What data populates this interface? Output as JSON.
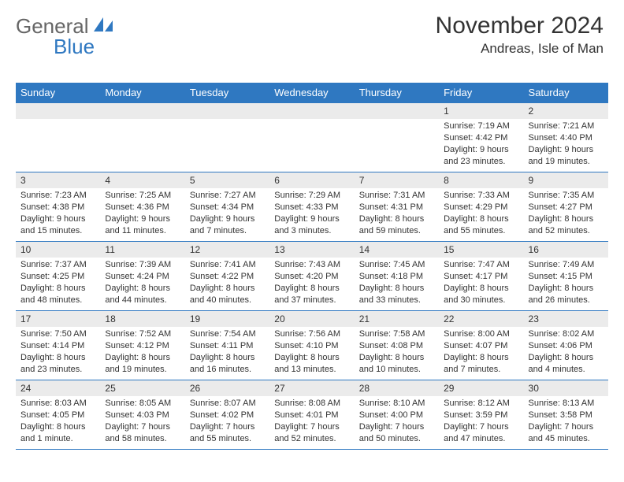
{
  "logo": {
    "part1": "General",
    "part2": "Blue"
  },
  "title": "November 2024",
  "subtitle": "Andreas, Isle of Man",
  "weekdays": [
    "Sunday",
    "Monday",
    "Tuesday",
    "Wednesday",
    "Thursday",
    "Friday",
    "Saturday"
  ],
  "colors": {
    "header_bg": "#2f78c1",
    "header_text": "#ffffff",
    "daynum_bg": "#ebebeb",
    "border": "#2f78c1",
    "logo_gray": "#666666",
    "logo_blue": "#2f78c1",
    "page_bg": "#ffffff",
    "text": "#333333"
  },
  "layout": {
    "cols": 7,
    "rows": 5,
    "first_weekday_index": 5,
    "days_in_month": 30
  },
  "typography": {
    "title_fontsize": 30,
    "subtitle_fontsize": 17,
    "weekday_fontsize": 13,
    "daynum_fontsize": 12,
    "info_fontsize": 11,
    "logo_fontsize": 26
  },
  "days": [
    {
      "n": 1,
      "sunrise": "7:19 AM",
      "sunset": "4:42 PM",
      "daylight": "9 hours and 23 minutes."
    },
    {
      "n": 2,
      "sunrise": "7:21 AM",
      "sunset": "4:40 PM",
      "daylight": "9 hours and 19 minutes."
    },
    {
      "n": 3,
      "sunrise": "7:23 AM",
      "sunset": "4:38 PM",
      "daylight": "9 hours and 15 minutes."
    },
    {
      "n": 4,
      "sunrise": "7:25 AM",
      "sunset": "4:36 PM",
      "daylight": "9 hours and 11 minutes."
    },
    {
      "n": 5,
      "sunrise": "7:27 AM",
      "sunset": "4:34 PM",
      "daylight": "9 hours and 7 minutes."
    },
    {
      "n": 6,
      "sunrise": "7:29 AM",
      "sunset": "4:33 PM",
      "daylight": "9 hours and 3 minutes."
    },
    {
      "n": 7,
      "sunrise": "7:31 AM",
      "sunset": "4:31 PM",
      "daylight": "8 hours and 59 minutes."
    },
    {
      "n": 8,
      "sunrise": "7:33 AM",
      "sunset": "4:29 PM",
      "daylight": "8 hours and 55 minutes."
    },
    {
      "n": 9,
      "sunrise": "7:35 AM",
      "sunset": "4:27 PM",
      "daylight": "8 hours and 52 minutes."
    },
    {
      "n": 10,
      "sunrise": "7:37 AM",
      "sunset": "4:25 PM",
      "daylight": "8 hours and 48 minutes."
    },
    {
      "n": 11,
      "sunrise": "7:39 AM",
      "sunset": "4:24 PM",
      "daylight": "8 hours and 44 minutes."
    },
    {
      "n": 12,
      "sunrise": "7:41 AM",
      "sunset": "4:22 PM",
      "daylight": "8 hours and 40 minutes."
    },
    {
      "n": 13,
      "sunrise": "7:43 AM",
      "sunset": "4:20 PM",
      "daylight": "8 hours and 37 minutes."
    },
    {
      "n": 14,
      "sunrise": "7:45 AM",
      "sunset": "4:18 PM",
      "daylight": "8 hours and 33 minutes."
    },
    {
      "n": 15,
      "sunrise": "7:47 AM",
      "sunset": "4:17 PM",
      "daylight": "8 hours and 30 minutes."
    },
    {
      "n": 16,
      "sunrise": "7:49 AM",
      "sunset": "4:15 PM",
      "daylight": "8 hours and 26 minutes."
    },
    {
      "n": 17,
      "sunrise": "7:50 AM",
      "sunset": "4:14 PM",
      "daylight": "8 hours and 23 minutes."
    },
    {
      "n": 18,
      "sunrise": "7:52 AM",
      "sunset": "4:12 PM",
      "daylight": "8 hours and 19 minutes."
    },
    {
      "n": 19,
      "sunrise": "7:54 AM",
      "sunset": "4:11 PM",
      "daylight": "8 hours and 16 minutes."
    },
    {
      "n": 20,
      "sunrise": "7:56 AM",
      "sunset": "4:10 PM",
      "daylight": "8 hours and 13 minutes."
    },
    {
      "n": 21,
      "sunrise": "7:58 AM",
      "sunset": "4:08 PM",
      "daylight": "8 hours and 10 minutes."
    },
    {
      "n": 22,
      "sunrise": "8:00 AM",
      "sunset": "4:07 PM",
      "daylight": "8 hours and 7 minutes."
    },
    {
      "n": 23,
      "sunrise": "8:02 AM",
      "sunset": "4:06 PM",
      "daylight": "8 hours and 4 minutes."
    },
    {
      "n": 24,
      "sunrise": "8:03 AM",
      "sunset": "4:05 PM",
      "daylight": "8 hours and 1 minute."
    },
    {
      "n": 25,
      "sunrise": "8:05 AM",
      "sunset": "4:03 PM",
      "daylight": "7 hours and 58 minutes."
    },
    {
      "n": 26,
      "sunrise": "8:07 AM",
      "sunset": "4:02 PM",
      "daylight": "7 hours and 55 minutes."
    },
    {
      "n": 27,
      "sunrise": "8:08 AM",
      "sunset": "4:01 PM",
      "daylight": "7 hours and 52 minutes."
    },
    {
      "n": 28,
      "sunrise": "8:10 AM",
      "sunset": "4:00 PM",
      "daylight": "7 hours and 50 minutes."
    },
    {
      "n": 29,
      "sunrise": "8:12 AM",
      "sunset": "3:59 PM",
      "daylight": "7 hours and 47 minutes."
    },
    {
      "n": 30,
      "sunrise": "8:13 AM",
      "sunset": "3:58 PM",
      "daylight": "7 hours and 45 minutes."
    }
  ],
  "labels": {
    "sunrise": "Sunrise:",
    "sunset": "Sunset:",
    "daylight": "Daylight:"
  }
}
